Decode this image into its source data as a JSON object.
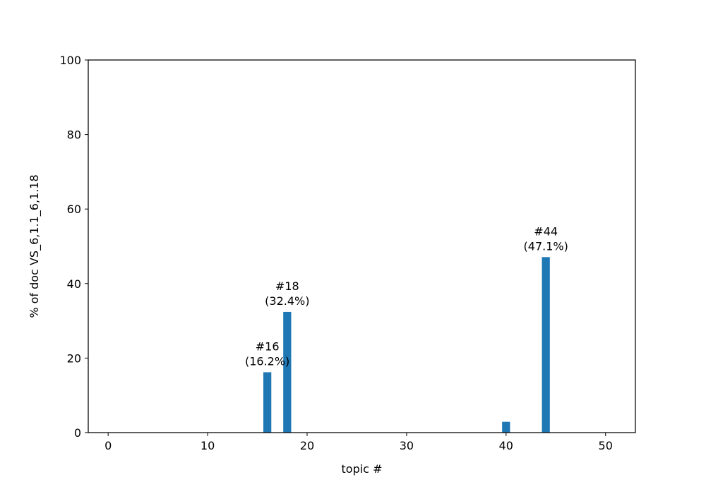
{
  "chart_data": {
    "type": "bar",
    "xlabel": "topic #",
    "ylabel": "% of doc VS_6,1.1_6,1.18",
    "xlim": [
      -2,
      53
    ],
    "ylim": [
      0,
      100
    ],
    "x_ticks": [
      0,
      10,
      20,
      30,
      40,
      50
    ],
    "y_ticks": [
      0,
      20,
      40,
      60,
      80,
      100
    ],
    "bar_color": "#1f77b4",
    "x": [
      0,
      1,
      2,
      3,
      4,
      5,
      6,
      7,
      8,
      9,
      10,
      11,
      12,
      13,
      14,
      15,
      16,
      17,
      18,
      19,
      20,
      21,
      22,
      23,
      24,
      25,
      26,
      27,
      28,
      29,
      30,
      31,
      32,
      33,
      34,
      35,
      36,
      37,
      38,
      39,
      40,
      41,
      42,
      43,
      44,
      45,
      46,
      47,
      48,
      49,
      50
    ],
    "values": [
      0,
      0,
      0,
      0,
      0,
      0,
      0,
      0,
      0,
      0,
      0,
      0,
      0,
      0,
      0,
      0,
      16.2,
      0,
      32.4,
      0,
      0,
      0,
      0,
      0,
      0,
      0,
      0,
      0,
      0,
      0,
      0,
      0,
      0,
      0,
      0,
      0,
      0,
      0,
      0,
      0,
      2.9,
      0,
      0,
      0,
      47.1,
      0,
      0,
      0,
      0,
      0,
      0
    ],
    "annotations": [
      {
        "x": 16,
        "y": 16.2,
        "line1": "#16",
        "line2": "(16.2%)"
      },
      {
        "x": 18,
        "y": 32.4,
        "line1": "#18",
        "line2": "(32.4%)"
      },
      {
        "x": 44,
        "y": 47.1,
        "line1": "#44",
        "line2": "(47.1%)"
      }
    ]
  }
}
